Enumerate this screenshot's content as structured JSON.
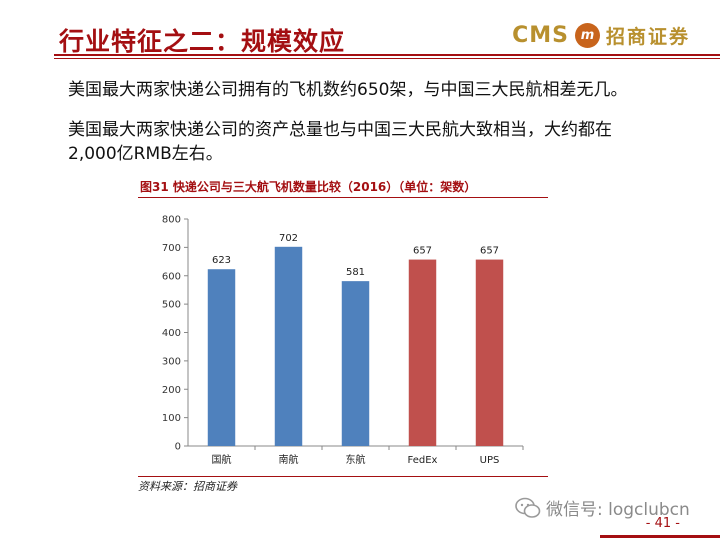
{
  "slide": {
    "title": "行业特征之二：规模效应",
    "logo_text": "CMS",
    "logo_badge": "m",
    "logo_chinese": "招商证券",
    "paragraphs": [
      "美国最大两家快递公司拥有的飞机数约650架，与中国三大民航相差无几。",
      "美国最大两家快递公司的资产总量也与中国三大民航大致相当，大约都在",
      "2,000亿RMB左右。"
    ],
    "figure_title": "图31  快递公司与三大航飞机数量比较（2016）（单位：架数）",
    "source": "资料来源：招商证券",
    "watermark": "微信号: logclubcn",
    "page_number": "- 41 -"
  },
  "colors": {
    "brand_red": "#a40f12",
    "bar_blue": "#4f81bd",
    "bar_red": "#c0504d",
    "logo_gold": "#b8902e"
  },
  "chart_data": {
    "type": "bar",
    "title": "",
    "xlabel": "",
    "ylabel": "",
    "categories": [
      "国航",
      "南航",
      "东航",
      "FedEx",
      "UPS"
    ],
    "values": [
      623,
      702,
      581,
      657,
      657
    ],
    "bar_colors": [
      "#4f81bd",
      "#4f81bd",
      "#4f81bd",
      "#c0504d",
      "#c0504d"
    ],
    "ylim": [
      0,
      800
    ],
    "yticks": [
      0,
      100,
      200,
      300,
      400,
      500,
      600,
      700,
      800
    ],
    "grid": false,
    "legend": "none"
  }
}
